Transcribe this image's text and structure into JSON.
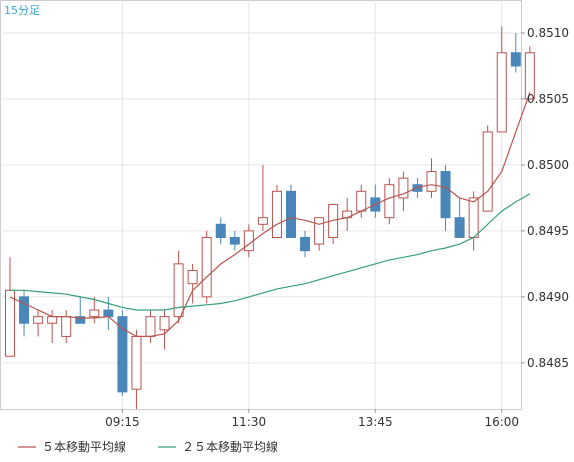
{
  "chart_data": {
    "type": "candlestick",
    "title": "",
    "period_label": "15分足",
    "xlabel": "",
    "ylabel": "",
    "ylim": [
      0.84815,
      0.85125
    ],
    "grid": true,
    "legend_position": "bottom-left",
    "up_color": "#ffffff",
    "up_border_color": "#b85450",
    "down_color": "#4a86b8",
    "x_tick_labels": [
      {
        "index": 8,
        "label": "09:15"
      },
      {
        "index": 17,
        "label": "11:30"
      },
      {
        "index": 26,
        "label": "13:45"
      },
      {
        "index": 35,
        "label": "16:00"
      }
    ],
    "y_ticks": [
      {
        "value": 0.851,
        "label": "0.8510"
      },
      {
        "value": 0.8505,
        "label": "0.8505"
      },
      {
        "value": 0.85,
        "label": "0.8500"
      },
      {
        "value": 0.8495,
        "label": "0.8495"
      },
      {
        "value": 0.849,
        "label": "0.8490"
      },
      {
        "value": 0.8485,
        "label": "0.8485"
      }
    ],
    "candles": [
      {
        "o": 0.84855,
        "h": 0.8493,
        "l": 0.84855,
        "c": 0.84905
      },
      {
        "o": 0.849,
        "h": 0.84905,
        "l": 0.8487,
        "c": 0.8488
      },
      {
        "o": 0.8488,
        "h": 0.8489,
        "l": 0.8487,
        "c": 0.84885
      },
      {
        "o": 0.8488,
        "h": 0.8489,
        "l": 0.84865,
        "c": 0.84885
      },
      {
        "o": 0.8487,
        "h": 0.8489,
        "l": 0.84865,
        "c": 0.84885
      },
      {
        "o": 0.84885,
        "h": 0.849,
        "l": 0.8488,
        "c": 0.8488
      },
      {
        "o": 0.84885,
        "h": 0.849,
        "l": 0.8488,
        "c": 0.8489
      },
      {
        "o": 0.8489,
        "h": 0.849,
        "l": 0.84875,
        "c": 0.84885
      },
      {
        "o": 0.84885,
        "h": 0.8489,
        "l": 0.84825,
        "c": 0.84828
      },
      {
        "o": 0.8483,
        "h": 0.84875,
        "l": 0.84815,
        "c": 0.8487
      },
      {
        "o": 0.8487,
        "h": 0.8489,
        "l": 0.84865,
        "c": 0.84885
      },
      {
        "o": 0.84875,
        "h": 0.8489,
        "l": 0.8486,
        "c": 0.84885
      },
      {
        "o": 0.84885,
        "h": 0.84935,
        "l": 0.8488,
        "c": 0.84925
      },
      {
        "o": 0.8491,
        "h": 0.84925,
        "l": 0.84895,
        "c": 0.8492
      },
      {
        "o": 0.849,
        "h": 0.8495,
        "l": 0.84895,
        "c": 0.84945
      },
      {
        "o": 0.84955,
        "h": 0.8496,
        "l": 0.8494,
        "c": 0.84945
      },
      {
        "o": 0.84945,
        "h": 0.8495,
        "l": 0.84935,
        "c": 0.8494
      },
      {
        "o": 0.84935,
        "h": 0.84955,
        "l": 0.8493,
        "c": 0.8495
      },
      {
        "o": 0.84955,
        "h": 0.85,
        "l": 0.8495,
        "c": 0.8496
      },
      {
        "o": 0.84945,
        "h": 0.84985,
        "l": 0.84945,
        "c": 0.8498
      },
      {
        "o": 0.8498,
        "h": 0.84985,
        "l": 0.84945,
        "c": 0.84945
      },
      {
        "o": 0.84945,
        "h": 0.8495,
        "l": 0.8493,
        "c": 0.84935
      },
      {
        "o": 0.8494,
        "h": 0.8496,
        "l": 0.84935,
        "c": 0.8496
      },
      {
        "o": 0.84945,
        "h": 0.8497,
        "l": 0.8494,
        "c": 0.8497
      },
      {
        "o": 0.8496,
        "h": 0.84975,
        "l": 0.8495,
        "c": 0.84965
      },
      {
        "o": 0.84965,
        "h": 0.84985,
        "l": 0.8496,
        "c": 0.8498
      },
      {
        "o": 0.84975,
        "h": 0.84985,
        "l": 0.8496,
        "c": 0.84965
      },
      {
        "o": 0.8496,
        "h": 0.8499,
        "l": 0.84955,
        "c": 0.84985
      },
      {
        "o": 0.84975,
        "h": 0.84995,
        "l": 0.84965,
        "c": 0.8499
      },
      {
        "o": 0.84985,
        "h": 0.8499,
        "l": 0.84975,
        "c": 0.8498
      },
      {
        "o": 0.8498,
        "h": 0.85005,
        "l": 0.84975,
        "c": 0.84995
      },
      {
        "o": 0.84995,
        "h": 0.85,
        "l": 0.8495,
        "c": 0.8496
      },
      {
        "o": 0.8496,
        "h": 0.84975,
        "l": 0.84945,
        "c": 0.84945
      },
      {
        "o": 0.84945,
        "h": 0.8498,
        "l": 0.84935,
        "c": 0.84975
      },
      {
        "o": 0.84965,
        "h": 0.8503,
        "l": 0.84965,
        "c": 0.85025
      },
      {
        "o": 0.85025,
        "h": 0.85105,
        "l": 0.85025,
        "c": 0.85085
      },
      {
        "o": 0.85085,
        "h": 0.851,
        "l": 0.8507,
        "c": 0.85075
      },
      {
        "o": 0.8505,
        "h": 0.8509,
        "l": 0.8505,
        "c": 0.85085
      }
    ],
    "series": [
      {
        "name": "５本移動平均線",
        "color": "#b85450",
        "values": [
          0.849,
          0.84895,
          0.8489,
          0.84885,
          0.84885,
          0.84884,
          0.84884,
          0.84885,
          0.84876,
          0.8487,
          0.8487,
          0.84872,
          0.84882,
          0.84905,
          0.84915,
          0.84925,
          0.84932,
          0.8494,
          0.84948,
          0.84955,
          0.8496,
          0.84958,
          0.84955,
          0.84958,
          0.8496,
          0.84965,
          0.8497,
          0.84975,
          0.84978,
          0.84983,
          0.84985,
          0.84983,
          0.84975,
          0.84972,
          0.8498,
          0.84995,
          0.85025,
          0.85055
        ]
      },
      {
        "name": "２５本移動平均線",
        "color": "#3a9f7a",
        "values": [
          0.84905,
          0.84905,
          0.84904,
          0.84903,
          0.84902,
          0.849,
          0.84898,
          0.84895,
          0.84892,
          0.8489,
          0.8489,
          0.8489,
          0.84892,
          0.84893,
          0.84894,
          0.84895,
          0.84897,
          0.849,
          0.84903,
          0.84906,
          0.84908,
          0.8491,
          0.84913,
          0.84916,
          0.84919,
          0.84922,
          0.84925,
          0.84928,
          0.8493,
          0.84932,
          0.84935,
          0.84937,
          0.8494,
          0.84945,
          0.84955,
          0.84965,
          0.84972,
          0.84978
        ]
      }
    ]
  }
}
